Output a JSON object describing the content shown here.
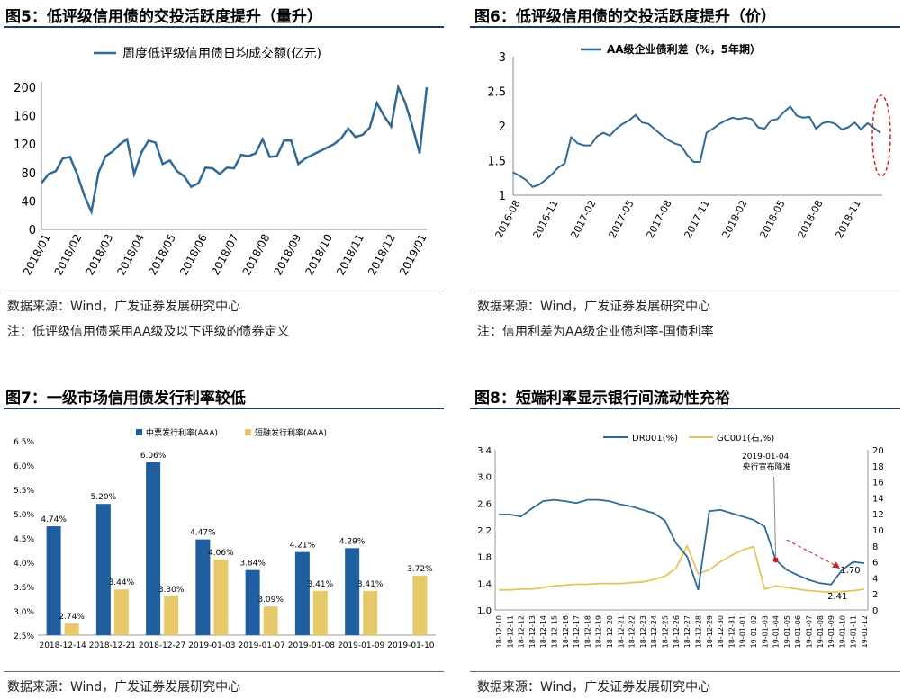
{
  "panels": {
    "fig5": {
      "title": "图5：低评级信用债的交投活跃度提升（量升）",
      "source": "数据来源：Wind，广发证券发展研究中心",
      "note": "注：低评级信用债采用AA级及以下评级的债券定义"
    },
    "fig6": {
      "title": "图6：低评级信用债的交投活跃度提升（价）",
      "source": "数据来源：Wind，广发证券发展研究中心",
      "note": "注：信用利差为AA级企业债利率-国债利率"
    },
    "fig7": {
      "title": "图7：一级市场信用债发行利率较低",
      "source": "数据来源：Wind，广发证券发展研究中心"
    },
    "fig8": {
      "title": "图8：短端利率显示银行间流动性充裕",
      "source": "数据来源：Wind，广发证券发展研究中心"
    }
  },
  "colors": {
    "primary": "#2f6a96",
    "secondary": "#e6c45c",
    "bar_blue": "#1f5fa0",
    "bar_yellow": "#e8c96a",
    "marker_red": "#cc2222"
  },
  "chart_data": [
    {
      "id": "fig5",
      "type": "line",
      "legend": "周度低评级信用债日均成交额(亿元)",
      "ylim": [
        0,
        200
      ],
      "yticks": [
        0,
        40,
        80,
        120,
        160,
        200
      ],
      "xticks": [
        "2018/01",
        "2018/02",
        "2018/03",
        "2018/04",
        "2018/05",
        "2018/06",
        "2018/07",
        "2018/08",
        "2018/09",
        "2018/10",
        "2018/11",
        "2018/12",
        "2019/01"
      ],
      "values": [
        65,
        78,
        82,
        100,
        102,
        78,
        48,
        25,
        80,
        103,
        110,
        120,
        127,
        78,
        108,
        125,
        122,
        92,
        97,
        82,
        75,
        60,
        65,
        87,
        86,
        78,
        87,
        86,
        105,
        103,
        107,
        127,
        102,
        103,
        125,
        125,
        92,
        100,
        105,
        110,
        115,
        120,
        128,
        142,
        130,
        133,
        143,
        178,
        160,
        145,
        200,
        178,
        145,
        107,
        200
      ]
    },
    {
      "id": "fig6",
      "type": "line",
      "legend": "AA级企业债利差（%，5年期）",
      "ylim": [
        1,
        3
      ],
      "yticks": [
        "1",
        "1.5",
        "2",
        "2.5",
        "3"
      ],
      "xticks": [
        "2016-08",
        "2016-11",
        "2017-02",
        "2017-05",
        "2017-08",
        "2017-11",
        "2018-02",
        "2018-05",
        "2018-08",
        "2018-11"
      ],
      "values": [
        1.33,
        1.28,
        1.22,
        1.12,
        1.15,
        1.22,
        1.3,
        1.4,
        1.46,
        1.84,
        1.75,
        1.72,
        1.72,
        1.85,
        1.9,
        1.86,
        1.96,
        2.03,
        2.08,
        2.16,
        2.05,
        2.03,
        1.95,
        1.87,
        1.8,
        1.75,
        1.72,
        1.58,
        1.48,
        1.48,
        1.9,
        1.96,
        2.03,
        2.08,
        2.12,
        2.1,
        2.12,
        2.1,
        1.98,
        1.96,
        2.08,
        2.1,
        2.2,
        2.28,
        2.15,
        2.12,
        2.13,
        1.96,
        2.04,
        2.06,
        2.03,
        1.95,
        1.98,
        2.05,
        1.95,
        2.04,
        1.97,
        1.9
      ]
    },
    {
      "id": "fig7",
      "type": "bar",
      "ylim": [
        2.5,
        6.5
      ],
      "yticks": [
        "2.5%",
        "3.0%",
        "3.5%",
        "4.0%",
        "4.5%",
        "5.0%",
        "5.5%",
        "6.0%",
        "6.5%"
      ],
      "categories": [
        "2018-12-14",
        "2018-12-21",
        "2018-12-27",
        "2019-01-03",
        "2019-01-07",
        "2019-01-08",
        "2019-01-09",
        "2019-01-10"
      ],
      "series": [
        {
          "name": "中票发行利率(AAA)",
          "values": [
            4.74,
            5.2,
            6.06,
            4.47,
            3.84,
            4.21,
            4.29,
            null
          ],
          "labels": [
            "4.74%",
            "5.20%",
            "6.06%",
            "4.47%",
            "3.84%",
            "4.21%",
            "4.29%",
            ""
          ]
        },
        {
          "name": "短融发行利率(AAA)",
          "values": [
            2.74,
            3.44,
            3.3,
            4.06,
            3.09,
            3.41,
            3.41,
            3.72
          ],
          "labels": [
            "2.74%",
            "3.44%",
            "3.30%",
            "4.06%",
            "3.09%",
            "3.41%",
            "3.41%",
            "3.72%"
          ]
        }
      ]
    },
    {
      "id": "fig8",
      "type": "line",
      "ylim_left": [
        1.0,
        3.4
      ],
      "yticks_left": [
        "1.0",
        "1.4",
        "1.8",
        "2.2",
        "2.6",
        "3.0",
        "3.4"
      ],
      "ylim_right": [
        0,
        20
      ],
      "yticks_right": [
        "0",
        "2",
        "4",
        "6",
        "8",
        "10",
        "12",
        "14",
        "16",
        "18",
        "20"
      ],
      "categories": [
        "18-12-10",
        "18-12-11",
        "18-12-12",
        "18-12-13",
        "18-12-14",
        "18-12-15",
        "18-12-16",
        "18-12-17",
        "18-12-18",
        "18-12-19",
        "18-12-20",
        "18-12-21",
        "18-12-22",
        "18-12-23",
        "18-12-24",
        "18-12-25",
        "18-12-26",
        "18-12-27",
        "18-12-28",
        "18-12-29",
        "18-12-30",
        "18-12-31",
        "19-01-01",
        "19-01-02",
        "19-01-03",
        "19-01-04",
        "19-01-05",
        "19-01-06",
        "19-01-07",
        "19-01-08",
        "19-01-09",
        "19-01-10",
        "19-01-11",
        "19-01-12"
      ],
      "series": [
        {
          "name": "DR001(%)",
          "axis": "left",
          "values": [
            2.43,
            2.43,
            2.4,
            2.52,
            2.63,
            2.65,
            2.63,
            2.6,
            2.65,
            2.65,
            2.63,
            2.58,
            2.55,
            2.5,
            2.45,
            2.34,
            2.0,
            1.8,
            1.3,
            2.48,
            2.5,
            2.45,
            2.4,
            2.35,
            2.25,
            1.75,
            1.6,
            1.52,
            1.45,
            1.4,
            1.38,
            1.6,
            1.72,
            1.7
          ]
        },
        {
          "name": "GC001(右,%)",
          "axis": "right",
          "values": [
            2.5,
            2.5,
            2.6,
            2.6,
            2.8,
            3.0,
            3.1,
            3.2,
            3.2,
            3.3,
            3.3,
            3.3,
            3.4,
            3.5,
            3.8,
            4.2,
            5.2,
            8.0,
            4.5,
            5.0,
            6.0,
            6.8,
            7.5,
            7.9,
            2.6,
            3.0,
            2.8,
            2.6,
            2.4,
            2.3,
            2.2,
            2.3,
            2.41,
            2.6
          ]
        }
      ],
      "annotation": {
        "text1": "2019-01-04,",
        "text2": "央行宣布降准",
        "label_170": "1.70",
        "label_241": "2.41"
      }
    }
  ]
}
